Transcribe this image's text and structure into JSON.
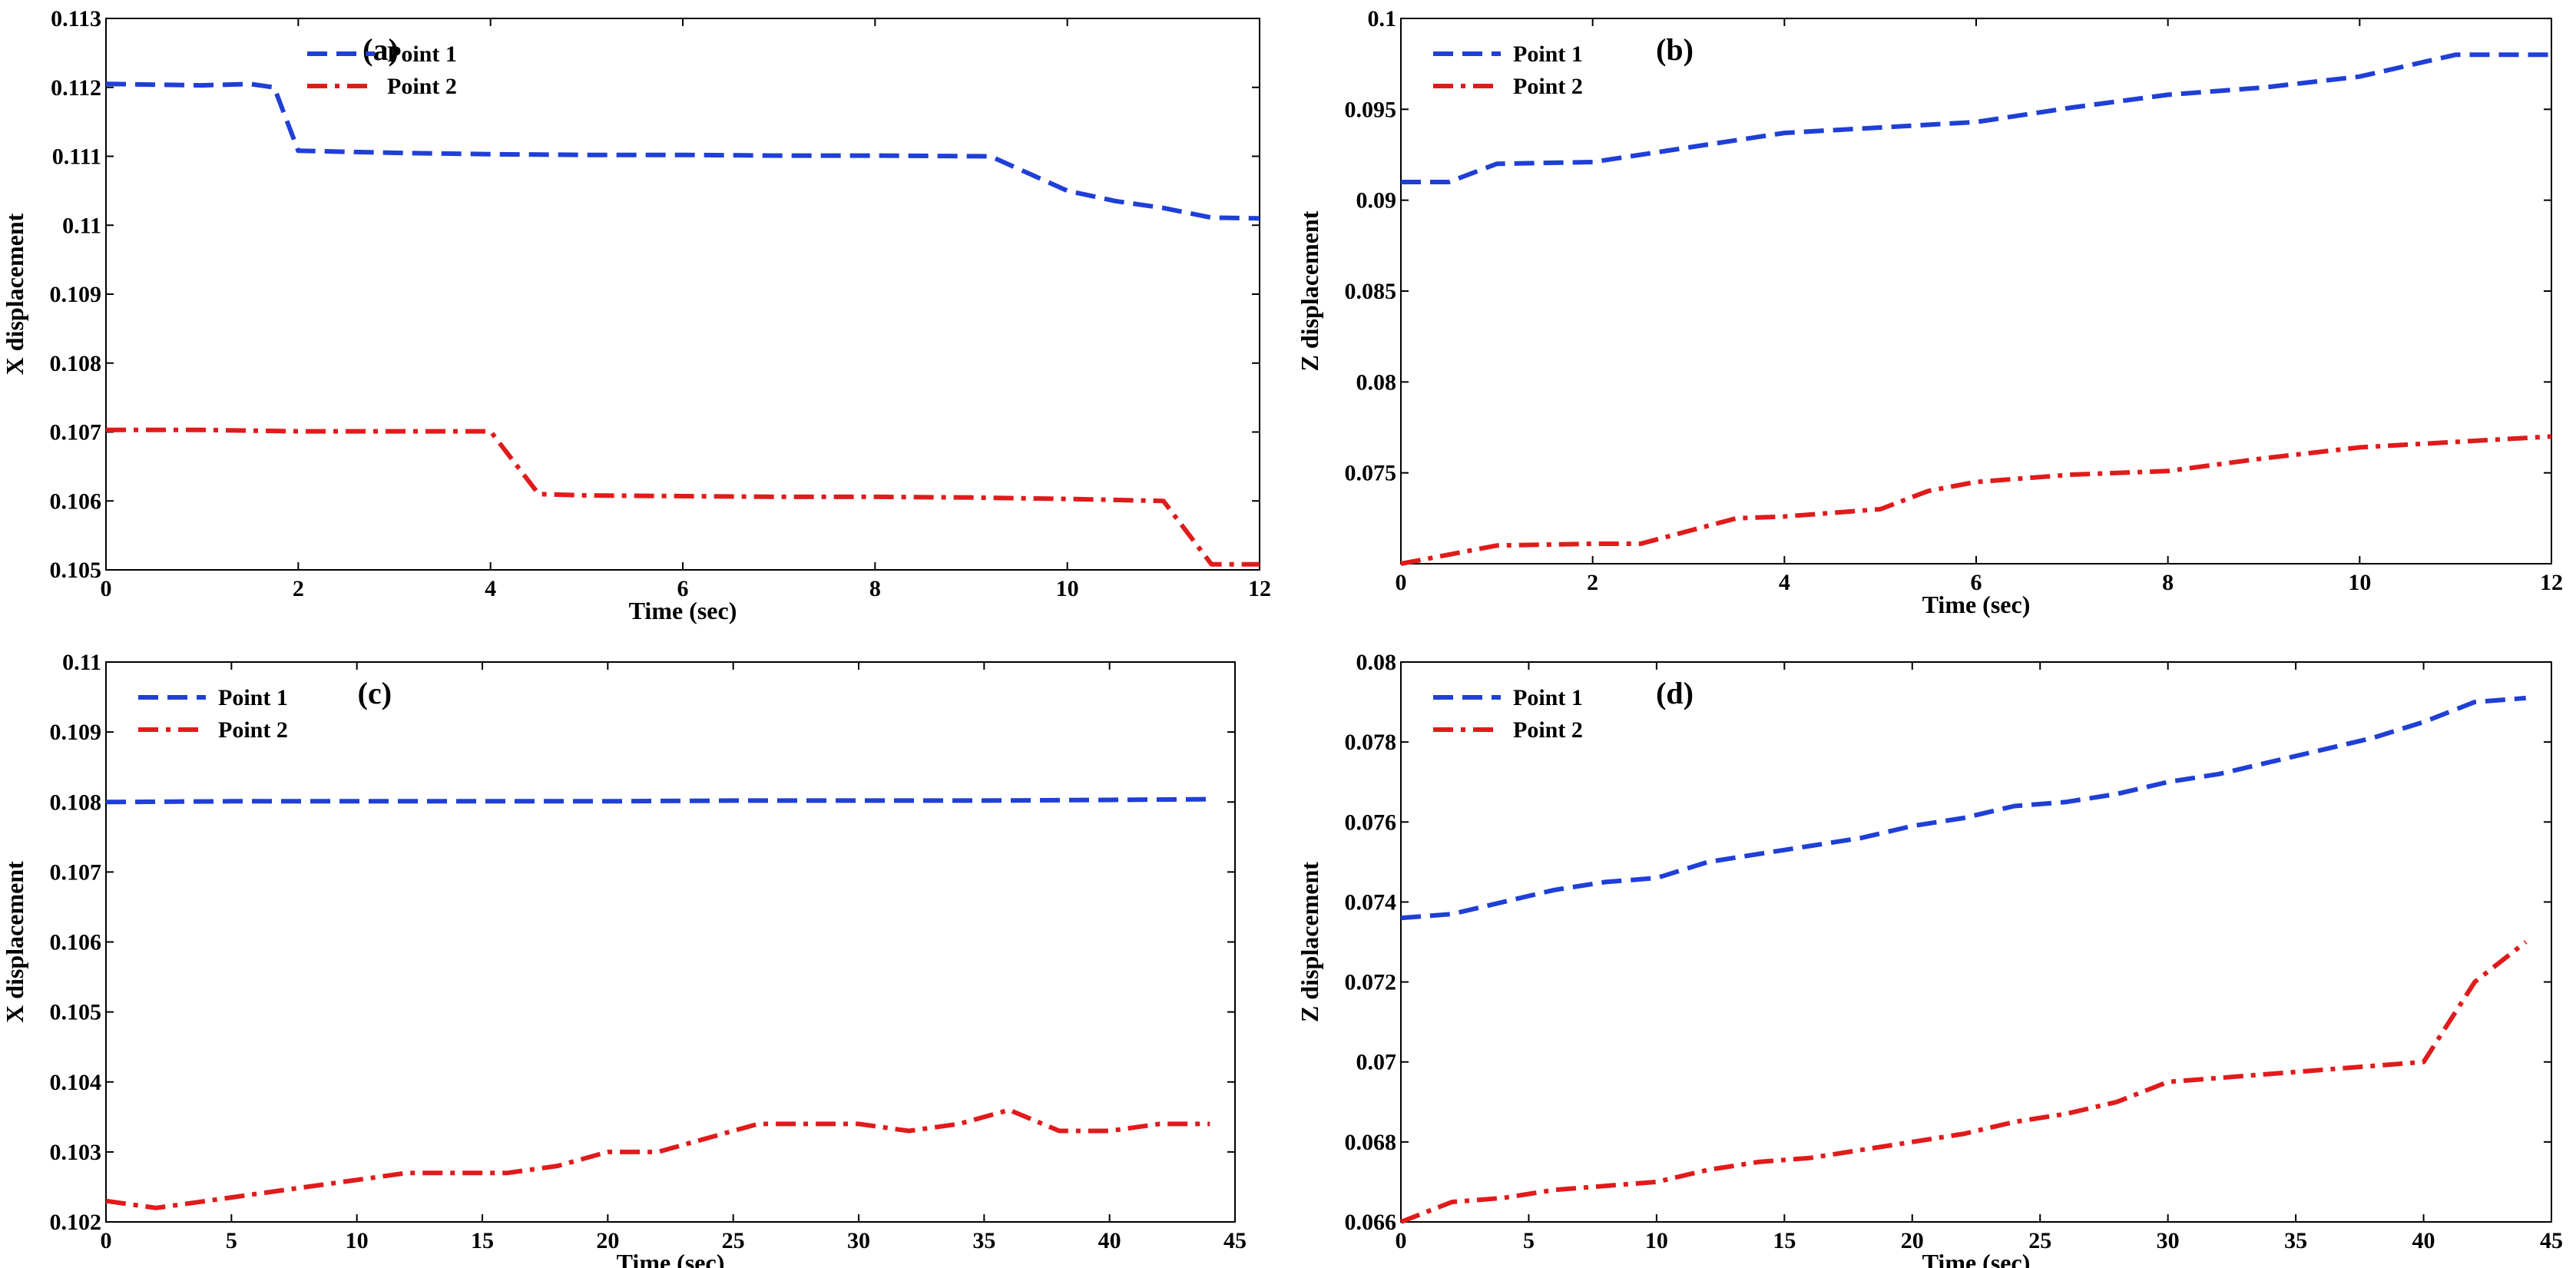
{
  "chart_data": [
    {
      "type": "line",
      "panel_label": "(a)",
      "xlabel": "Time (sec)",
      "ylabel": "X displacement",
      "xlim": [
        0,
        12
      ],
      "ylim": [
        0.105,
        0.113
      ],
      "x_ticks": [
        "0",
        "2",
        "4",
        "6",
        "8",
        "10",
        "12"
      ],
      "y_ticks": [
        "0.105",
        "0.106",
        "0.107",
        "0.108",
        "0.109",
        "0.11",
        "0.111",
        "0.112",
        "0.113"
      ],
      "legend_position": "top-left",
      "grid": false,
      "series": [
        {
          "name": "Point 1",
          "color": "#1f3fd6",
          "style": "dashed",
          "points": [
            [
              0,
              0.11205
            ],
            [
              1,
              0.11203
            ],
            [
              1.5,
              0.11205
            ],
            [
              1.75,
              0.112
            ],
            [
              2,
              0.11108
            ],
            [
              3,
              0.11105
            ],
            [
              4,
              0.11103
            ],
            [
              5,
              0.11102
            ],
            [
              6,
              0.11102
            ],
            [
              7,
              0.11101
            ],
            [
              8,
              0.11101
            ],
            [
              9.2,
              0.111
            ],
            [
              9.6,
              0.11075
            ],
            [
              10,
              0.1105
            ],
            [
              10.5,
              0.11035
            ],
            [
              11,
              0.11025
            ],
            [
              11.5,
              0.11011
            ],
            [
              12,
              0.1101
            ]
          ]
        },
        {
          "name": "Point 2",
          "color": "#e01b1b",
          "style": "dashdot",
          "points": [
            [
              0,
              0.10703
            ],
            [
              1,
              0.10703
            ],
            [
              2,
              0.10701
            ],
            [
              3,
              0.10701
            ],
            [
              4,
              0.10701
            ],
            [
              4.5,
              0.1061
            ],
            [
              5,
              0.10608
            ],
            [
              6,
              0.10607
            ],
            [
              7,
              0.10606
            ],
            [
              8,
              0.10606
            ],
            [
              9,
              0.10605
            ],
            [
              10,
              0.10603
            ],
            [
              11,
              0.106
            ],
            [
              11.5,
              0.10508
            ],
            [
              12,
              0.10508
            ]
          ]
        }
      ]
    },
    {
      "type": "line",
      "panel_label": "(b)",
      "xlabel": "Time (sec)",
      "ylabel": "Z displacement",
      "xlim": [
        0,
        12
      ],
      "ylim": [
        0.07,
        0.1
      ],
      "x_ticks": [
        "0",
        "2",
        "4",
        "6",
        "8",
        "10",
        "12"
      ],
      "y_ticks": [
        "0.075",
        "0.08",
        "0.085",
        "0.09",
        "0.095",
        "0.1"
      ],
      "legend_position": "top-left",
      "grid": false,
      "series": [
        {
          "name": "Point 1",
          "color": "#1f3fd6",
          "style": "dashed",
          "points": [
            [
              0,
              0.091
            ],
            [
              0.5,
              0.091
            ],
            [
              1,
              0.092
            ],
            [
              2,
              0.0921
            ],
            [
              3,
              0.0929
            ],
            [
              4,
              0.0937
            ],
            [
              5,
              0.094
            ],
            [
              6,
              0.0943
            ],
            [
              7,
              0.0951
            ],
            [
              8,
              0.0958
            ],
            [
              9,
              0.0962
            ],
            [
              10,
              0.0968
            ],
            [
              11,
              0.098
            ],
            [
              12,
              0.098
            ]
          ]
        },
        {
          "name": "Point 2",
          "color": "#e01b1b",
          "style": "dashdot",
          "points": [
            [
              0,
              0.07
            ],
            [
              1,
              0.071
            ],
            [
              2,
              0.0711
            ],
            [
              2.5,
              0.0711
            ],
            [
              3,
              0.0718
            ],
            [
              3.5,
              0.0725
            ],
            [
              4,
              0.0726
            ],
            [
              5,
              0.073
            ],
            [
              5.5,
              0.074
            ],
            [
              6,
              0.0745
            ],
            [
              7,
              0.0749
            ],
            [
              8,
              0.0751
            ],
            [
              9,
              0.0758
            ],
            [
              10,
              0.0764
            ],
            [
              11,
              0.0767
            ],
            [
              12,
              0.077
            ]
          ]
        }
      ]
    },
    {
      "type": "line",
      "panel_label": "(c)",
      "xlabel": "Time (sec)",
      "ylabel": "X displacement",
      "xlim": [
        0,
        45
      ],
      "ylim": [
        0.102,
        0.11
      ],
      "x_ticks": [
        "0",
        "5",
        "10",
        "15",
        "20",
        "25",
        "30",
        "35",
        "40",
        "45"
      ],
      "y_ticks": [
        "0.102",
        "0.103",
        "0.104",
        "0.105",
        "0.106",
        "0.107",
        "0.108",
        "0.109",
        "0.11"
      ],
      "legend_position": "top-left",
      "grid": false,
      "series": [
        {
          "name": "Point 1",
          "color": "#1f3fd6",
          "style": "dashed",
          "points": [
            [
              0,
              0.108
            ],
            [
              5,
              0.10801
            ],
            [
              10,
              0.10801
            ],
            [
              15,
              0.10801
            ],
            [
              20,
              0.10801
            ],
            [
              25,
              0.10802
            ],
            [
              30,
              0.10802
            ],
            [
              35,
              0.10802
            ],
            [
              40,
              0.10803
            ],
            [
              44,
              0.10804
            ]
          ]
        },
        {
          "name": "Point 2",
          "color": "#e01b1b",
          "style": "dashdot",
          "points": [
            [
              0,
              0.1023
            ],
            [
              2,
              0.1022
            ],
            [
              4,
              0.1023
            ],
            [
              6,
              0.1024
            ],
            [
              8,
              0.1025
            ],
            [
              10,
              0.1026
            ],
            [
              12,
              0.1027
            ],
            [
              14,
              0.1027
            ],
            [
              16,
              0.1027
            ],
            [
              18,
              0.1028
            ],
            [
              20,
              0.103
            ],
            [
              22,
              0.103
            ],
            [
              24,
              0.1032
            ],
            [
              26,
              0.1034
            ],
            [
              28,
              0.1034
            ],
            [
              30,
              0.1034
            ],
            [
              32,
              0.1033
            ],
            [
              34,
              0.1034
            ],
            [
              36,
              0.1036
            ],
            [
              38,
              0.1033
            ],
            [
              40,
              0.1033
            ],
            [
              42,
              0.1034
            ],
            [
              44,
              0.1034
            ]
          ]
        }
      ]
    },
    {
      "type": "line",
      "panel_label": "(d)",
      "xlabel": "Time (sec)",
      "ylabel": "Z displacement",
      "xlim": [
        0,
        45
      ],
      "ylim": [
        0.066,
        0.08
      ],
      "x_ticks": [
        "0",
        "5",
        "10",
        "15",
        "20",
        "25",
        "30",
        "35",
        "40",
        "45"
      ],
      "y_ticks": [
        "0.066",
        "0.068",
        "0.07",
        "0.072",
        "0.074",
        "0.076",
        "0.078",
        "0.08"
      ],
      "legend_position": "top-left",
      "grid": false,
      "series": [
        {
          "name": "Point 1",
          "color": "#1f3fd6",
          "style": "dashed",
          "points": [
            [
              0,
              0.0736
            ],
            [
              2,
              0.0737
            ],
            [
              4,
              0.074
            ],
            [
              6,
              0.0743
            ],
            [
              8,
              0.0745
            ],
            [
              10,
              0.0746
            ],
            [
              12,
              0.075
            ],
            [
              14,
              0.0752
            ],
            [
              16,
              0.0754
            ],
            [
              18,
              0.0756
            ],
            [
              20,
              0.0759
            ],
            [
              22,
              0.0761
            ],
            [
              24,
              0.0764
            ],
            [
              26,
              0.0765
            ],
            [
              28,
              0.0767
            ],
            [
              30,
              0.077
            ],
            [
              32,
              0.0772
            ],
            [
              34,
              0.0775
            ],
            [
              36,
              0.0778
            ],
            [
              38,
              0.0781
            ],
            [
              40,
              0.0785
            ],
            [
              42,
              0.079
            ],
            [
              44,
              0.0791
            ]
          ]
        },
        {
          "name": "Point 2",
          "color": "#e01b1b",
          "style": "dashdot",
          "points": [
            [
              0,
              0.066
            ],
            [
              2,
              0.0665
            ],
            [
              4,
              0.0666
            ],
            [
              6,
              0.0668
            ],
            [
              8,
              0.0669
            ],
            [
              10,
              0.067
            ],
            [
              12,
              0.0673
            ],
            [
              14,
              0.0675
            ],
            [
              16,
              0.0676
            ],
            [
              18,
              0.0678
            ],
            [
              20,
              0.068
            ],
            [
              22,
              0.0682
            ],
            [
              24,
              0.0685
            ],
            [
              26,
              0.0687
            ],
            [
              28,
              0.069
            ],
            [
              30,
              0.0695
            ],
            [
              32,
              0.0696
            ],
            [
              34,
              0.0697
            ],
            [
              36,
              0.0698
            ],
            [
              38,
              0.0699
            ],
            [
              40,
              0.07
            ],
            [
              42,
              0.072
            ],
            [
              44,
              0.073
            ]
          ]
        }
      ]
    }
  ]
}
